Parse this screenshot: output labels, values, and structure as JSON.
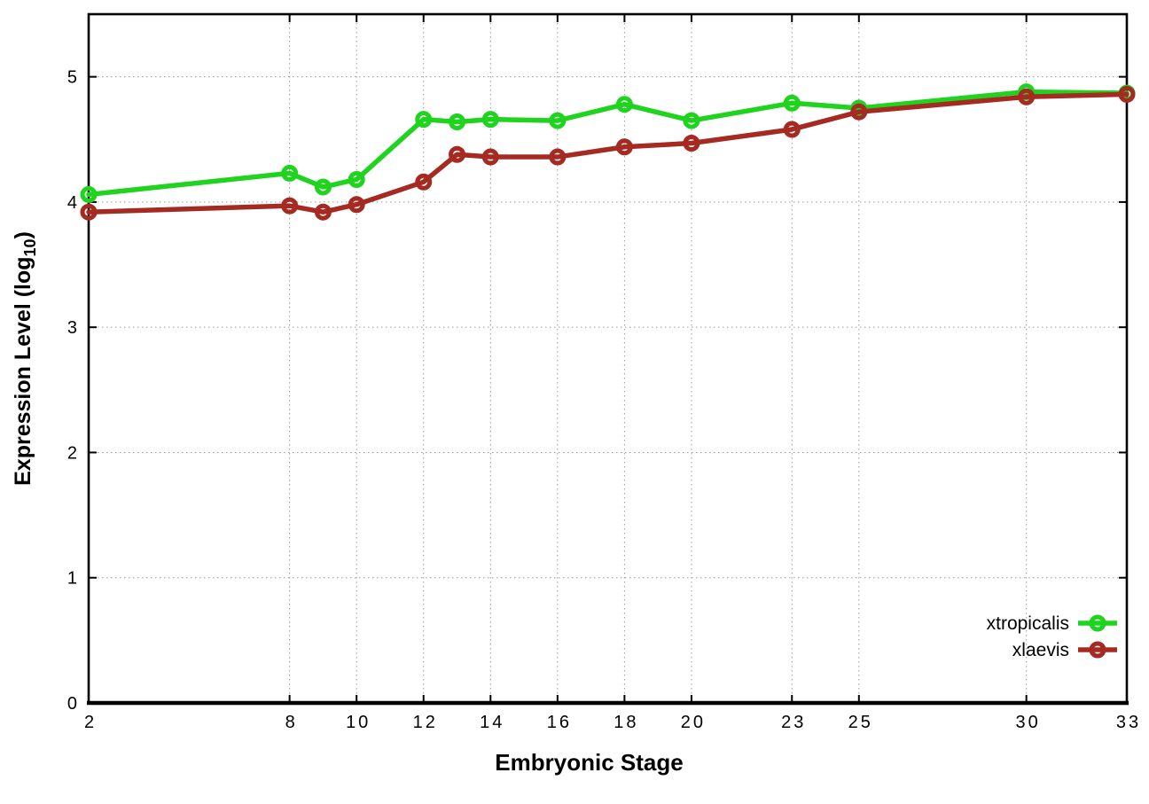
{
  "chart_data": {
    "type": "line",
    "title": "",
    "xlabel": "Embryonic Stage",
    "ylabel": "Expression Level (log10)",
    "ylabel_parts": {
      "prefix": "Expression Level (log",
      "subscript": "10",
      "suffix": ")"
    },
    "x": [
      2,
      8,
      9,
      10,
      12,
      13,
      14,
      16,
      18,
      20,
      23,
      25,
      30,
      33
    ],
    "series": [
      {
        "name": "xtropicalis",
        "color": "#1fd31f",
        "marker": "open-circle",
        "values": [
          4.06,
          4.23,
          4.12,
          4.18,
          4.66,
          4.64,
          4.66,
          4.65,
          4.78,
          4.65,
          4.79,
          4.75,
          4.88,
          4.87
        ]
      },
      {
        "name": "xlaevis",
        "color": "#a52a21",
        "marker": "open-circle",
        "values": [
          3.92,
          3.97,
          3.92,
          3.98,
          4.16,
          4.38,
          4.36,
          4.36,
          4.44,
          4.47,
          4.58,
          4.72,
          4.84,
          4.86
        ]
      }
    ],
    "x_ticks": [
      2,
      8,
      10,
      12,
      14,
      16,
      18,
      20,
      23,
      25,
      30,
      33
    ],
    "x_tick_labels": [
      "2",
      "8",
      "10",
      "12",
      "14",
      "16",
      "18",
      "20",
      "23",
      "25",
      "30",
      "33"
    ],
    "y_ticks": [
      0,
      1,
      2,
      3,
      4,
      5
    ],
    "y_tick_labels": [
      "0",
      "1",
      "2",
      "3",
      "4",
      "5"
    ],
    "xlim": [
      2,
      33
    ],
    "ylim": [
      0,
      5.5
    ],
    "grid": true,
    "legend_position": "inside-bottom-right",
    "legend_entries": [
      "xtropicalis",
      "xlaevis"
    ]
  },
  "colors": {
    "background": "#ffffff",
    "axis": "#000000",
    "grid": "#9a9a9a",
    "text": "#000000"
  }
}
